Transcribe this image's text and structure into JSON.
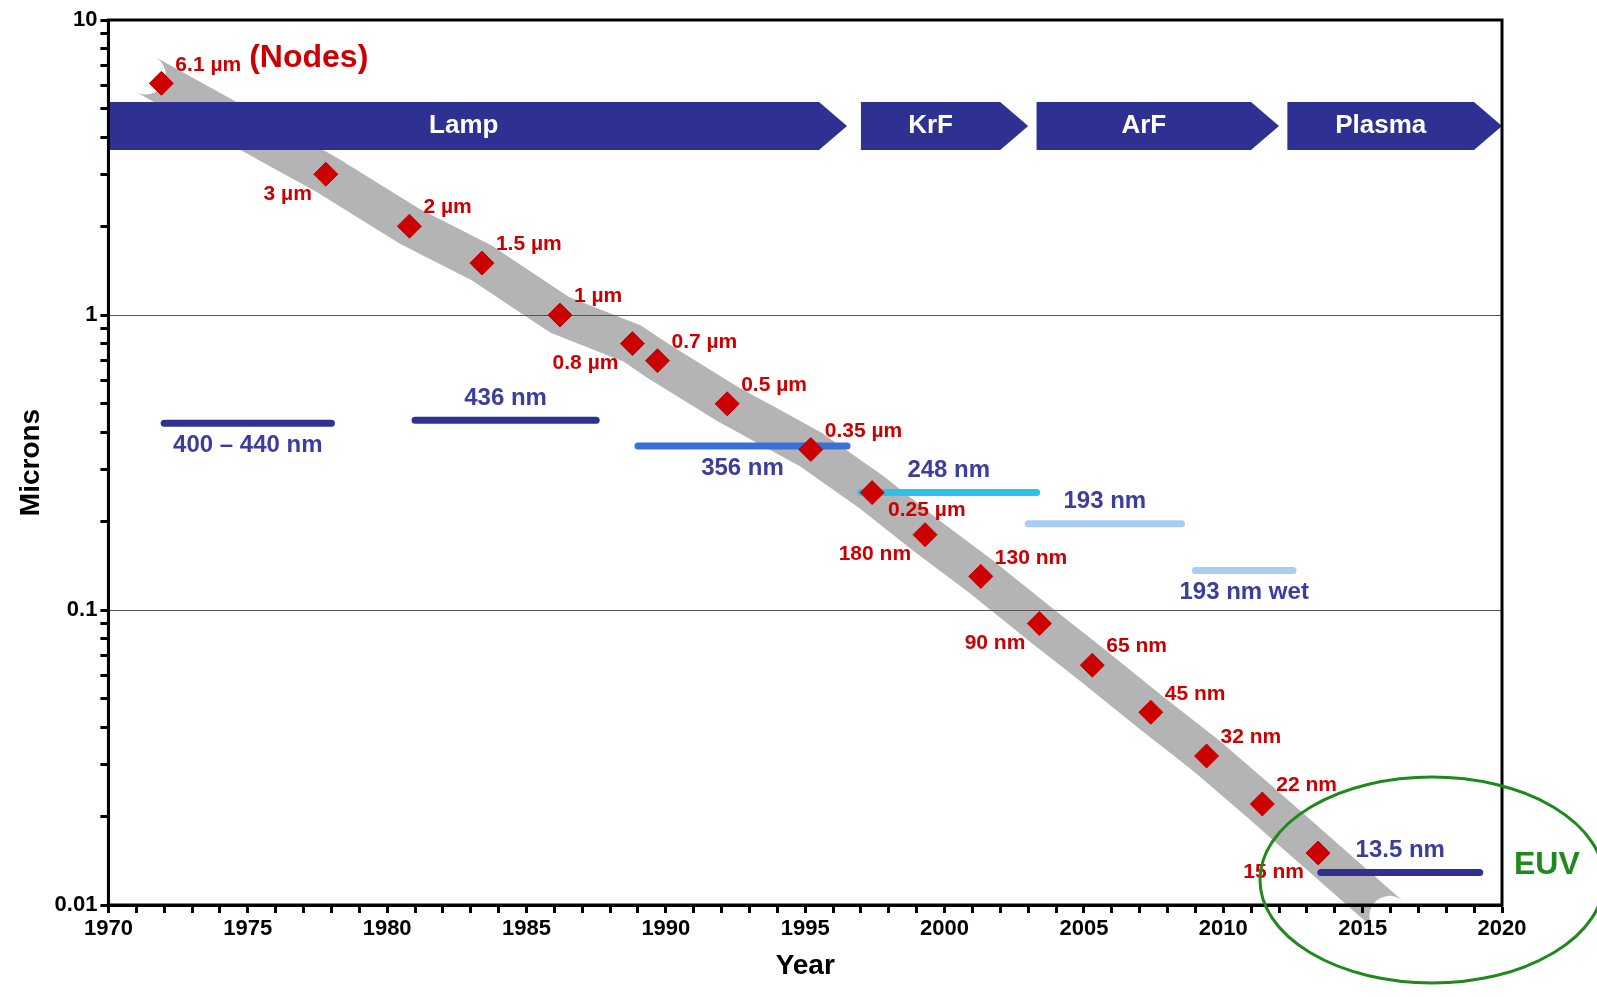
{
  "chart_data": {
    "type": "scatter",
    "xlabel": "Year",
    "ylabel": "Microns",
    "log": "y",
    "grid": "y",
    "legend": false,
    "marker": "diamond",
    "xlim": [
      1970,
      2020
    ],
    "ylim": [
      0.01,
      10
    ],
    "xticks": [
      1970,
      {
        "value": 1971,
        "label": null
      },
      {
        "value": 1972,
        "label": null
      },
      {
        "value": 1973,
        "label": null
      },
      {
        "value": 1974,
        "label": null
      },
      1975,
      {
        "value": 1976,
        "label": null
      },
      {
        "value": 1977,
        "label": null
      },
      {
        "value": 1978,
        "label": null
      },
      {
        "value": 1979,
        "label": null
      },
      1980,
      {
        "value": 1981,
        "label": null
      },
      {
        "value": 1982,
        "label": null
      },
      {
        "value": 1983,
        "label": null
      },
      {
        "value": 1984,
        "label": null
      },
      1985,
      {
        "value": 1986,
        "label": null
      },
      {
        "value": 1987,
        "label": null
      },
      {
        "value": 1988,
        "label": null
      },
      {
        "value": 1989,
        "label": null
      },
      1990,
      {
        "value": 1991,
        "label": null
      },
      {
        "value": 1992,
        "label": null
      },
      {
        "value": 1993,
        "label": null
      },
      {
        "value": 1994,
        "label": null
      },
      1995,
      {
        "value": 1996,
        "label": null
      },
      {
        "value": 1997,
        "label": null
      },
      {
        "value": 1998,
        "label": null
      },
      {
        "value": 1999,
        "label": null
      },
      2000,
      {
        "value": 2001,
        "label": null
      },
      {
        "value": 2002,
        "label": null
      },
      {
        "value": 2003,
        "label": null
      },
      {
        "value": 2004,
        "label": null
      },
      2005,
      {
        "value": 2006,
        "label": null
      },
      {
        "value": 2007,
        "label": null
      },
      {
        "value": 2008,
        "label": null
      },
      {
        "value": 2009,
        "label": null
      },
      2010,
      {
        "value": 2011,
        "label": null
      },
      {
        "value": 2012,
        "label": null
      },
      {
        "value": 2013,
        "label": null
      },
      {
        "value": 2014,
        "label": null
      },
      2015,
      {
        "value": 2016,
        "label": null
      },
      {
        "value": 2017,
        "label": null
      },
      {
        "value": 2018,
        "label": null
      },
      {
        "value": 2019,
        "label": null
      },
      2020
    ],
    "yticks": [
      0.01,
      {
        "value": 0.02,
        "label": null
      },
      {
        "value": 0.03,
        "label": null
      },
      {
        "value": 0.04,
        "label": null
      },
      {
        "value": 0.05,
        "label": null
      },
      {
        "value": 0.06,
        "label": null
      },
      {
        "value": 0.07,
        "label": null
      },
      {
        "value": 0.08,
        "label": null
      },
      {
        "value": 0.09,
        "label": null
      },
      0.1,
      {
        "value": 0.2,
        "label": null
      },
      {
        "value": 0.3,
        "label": null
      },
      {
        "value": 0.4,
        "label": null
      },
      {
        "value": 0.5,
        "label": null
      },
      {
        "value": 0.6,
        "label": null
      },
      {
        "value": 0.7,
        "label": null
      },
      {
        "value": 0.8,
        "label": null
      },
      {
        "value": 0.9,
        "label": null
      },
      1,
      {
        "value": 2,
        "label": null
      },
      {
        "value": 3,
        "label": null
      },
      {
        "value": 4,
        "label": null
      },
      {
        "value": 5,
        "label": null
      },
      {
        "value": 6,
        "label": null
      },
      {
        "value": 7,
        "label": null
      },
      {
        "value": 8,
        "label": null
      },
      {
        "value": 9,
        "label": null
      },
      10
    ],
    "bands": [
      {
        "axis": "x",
        "from": 1970,
        "to": 1996.5,
        "label": "Lamp",
        "color": "#2e3192"
      },
      {
        "axis": "x",
        "from": 1997,
        "to": 2003,
        "label": "KrF",
        "color": "#2e3192"
      },
      {
        "axis": "x",
        "from": 2003.3,
        "to": 2012,
        "label": "ArF",
        "color": "#2e3192"
      },
      {
        "axis": "x",
        "from": 2012.3,
        "to": 2020,
        "label": "Plasma",
        "color": "#2e3192"
      }
    ],
    "annotations": [
      {
        "text": "6.1 µm",
        "x": 1971.9,
        "y": 6.1
      },
      {
        "text": "(Nodes)",
        "x": 1971.9,
        "y": 6.1
      },
      {
        "text": "3 µm",
        "x": 1977.8,
        "y": 3
      },
      {
        "text": "2 µm",
        "x": 1980.8,
        "y": 2
      },
      {
        "text": "1.5 µm",
        "x": 1983.4,
        "y": 1.5
      },
      {
        "text": "1 µm",
        "x": 1986.2,
        "y": 1
      },
      {
        "text": "0.8 µm",
        "x": 1988.8,
        "y": 0.8
      },
      {
        "text": "0.7 µm",
        "x": 1989.7,
        "y": 0.7
      },
      {
        "text": "0.5 µm",
        "x": 1992.2,
        "y": 0.5
      },
      {
        "text": "0.35 µm",
        "x": 1995.2,
        "y": 0.35
      },
      {
        "text": "0.25 µm",
        "x": 1997.4,
        "y": 0.25
      },
      {
        "text": "180 nm",
        "x": 1999.3,
        "y": 0.18
      },
      {
        "text": "130 nm",
        "x": 2001.3,
        "y": 0.13
      },
      {
        "text": "90 nm",
        "x": 2003.4,
        "y": 0.09
      },
      {
        "text": "65 nm",
        "x": 2005.3,
        "y": 0.065
      },
      {
        "text": "45 nm",
        "x": 2007.4,
        "y": 0.045
      },
      {
        "text": "32 nm",
        "x": 2009.4,
        "y": 0.032
      },
      {
        "text": "22 nm",
        "x": 2011.4,
        "y": 0.022
      },
      {
        "text": "15 nm",
        "x": 2013.4,
        "y": 0.015
      },
      "EUV"
    ],
    "series": [
      {
        "color": "#cc0000",
        "x": [
          1971.9,
          1977.8,
          1980.8,
          1983.4,
          1986.2,
          1988.8,
          1989.7,
          1992.2,
          1995.2,
          1997.4,
          1999.3,
          2001.3,
          2003.4,
          2005.3,
          2007.4,
          2009.4,
          2011.4,
          2013.4
        ],
        "values": [
          6.1,
          3,
          2,
          1.5,
          1,
          0.8,
          0.7,
          0.5,
          0.35,
          0.25,
          0.18,
          0.13,
          0.09,
          0.065,
          0.045,
          0.032,
          0.022,
          0.015
        ]
      },
      {
        "type": "line",
        "marker": "none",
        "name": "400 – 440 nm",
        "color": "#2e3192",
        "x": [
          1972,
          1978
        ],
        "values": [
          0.43,
          0.43
        ]
      },
      {
        "type": "line",
        "marker": "none",
        "name": "436 nm",
        "color": "#2e3192",
        "x": [
          1981,
          1987.5
        ],
        "values": [
          0.44,
          0.44
        ]
      },
      {
        "type": "line",
        "marker": "none",
        "name": "356 nm",
        "color": "#3a6fd8",
        "x": [
          1989,
          1996.5
        ],
        "values": [
          0.36,
          0.36
        ]
      },
      {
        "type": "line",
        "marker": "none",
        "name": "248 nm",
        "color": "#2ec0e8",
        "x": [
          1997,
          2003.3
        ],
        "values": [
          0.25,
          0.25
        ]
      },
      {
        "type": "line",
        "marker": "none",
        "name": "193 nm",
        "color": "#a8cdf0",
        "x": [
          2003,
          2008.5
        ],
        "values": [
          0.196,
          0.196
        ]
      },
      {
        "type": "line",
        "marker": "none",
        "name": "193 nm wet",
        "color": "#a8cdf0",
        "x": [
          2009,
          2012.5
        ],
        "values": [
          0.136,
          0.136
        ]
      },
      {
        "type": "line",
        "marker": "none",
        "name": "13.5 nm",
        "color": "#2e3192",
        "x": [
          2013.5,
          2019.2
        ],
        "values": [
          0.0129,
          0.0129
        ]
      }
    ]
  }
}
